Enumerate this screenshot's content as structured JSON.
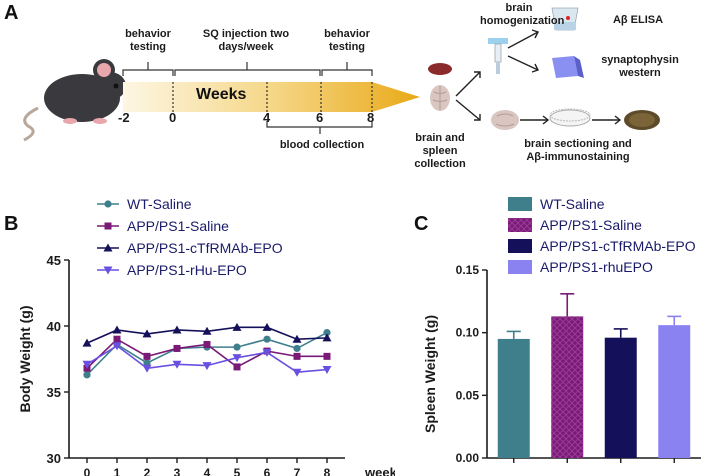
{
  "panel_labels": {
    "a": "A",
    "b": "B",
    "c": "C"
  },
  "panel_a": {
    "timeline_title": "Weeks",
    "ticks": [
      "-2",
      "0",
      "4",
      "6",
      "8"
    ],
    "phase1": "behavior testing",
    "phase2": "SQ injection  two days/week",
    "phase3": "behavior testing",
    "blood": "blood collection",
    "collection": "brain and spleen collection",
    "homogenization": "brain homogenization",
    "elisa": "Aβ ELISA",
    "western": "synaptophysin western",
    "sectioning": "brain sectioning and Aβ-immunostaining"
  },
  "chart_data": [
    {
      "type": "line",
      "panel": "B",
      "ylabel": "Body Weight (g)",
      "xlabel": "week",
      "x": [
        0,
        1,
        2,
        3,
        4,
        5,
        6,
        7,
        8
      ],
      "ylim": [
        30,
        45
      ],
      "yticks": [
        30,
        35,
        40,
        45
      ],
      "legend_position": "top-left",
      "series": [
        {
          "name": "WT-Saline",
          "color": "#3f7f8c",
          "marker": "circle",
          "values": [
            36.3,
            38.6,
            37.2,
            38.3,
            38.4,
            38.4,
            39.0,
            38.3,
            39.5
          ]
        },
        {
          "name": "APP/PS1-Saline",
          "color": "#7a1a77",
          "marker": "square",
          "values": [
            36.8,
            39.0,
            37.7,
            38.3,
            38.6,
            36.9,
            38.1,
            37.7,
            37.7
          ]
        },
        {
          "name": "APP/PS1-cTfRMAb-EPO",
          "color": "#15105a",
          "marker": "triangle-up",
          "values": [
            38.7,
            39.7,
            39.4,
            39.7,
            39.6,
            39.9,
            39.9,
            39.0,
            39.1
          ]
        },
        {
          "name": "APP/PS1-rHu-EPO",
          "color": "#6a50e0",
          "marker": "triangle-down",
          "values": [
            37.1,
            38.5,
            36.8,
            37.1,
            37.0,
            37.6,
            38.0,
            36.5,
            36.7
          ]
        }
      ]
    },
    {
      "type": "bar",
      "panel": "C",
      "ylabel": "Spleen Weight (g)",
      "ylim": [
        0,
        0.15
      ],
      "yticks": [
        "0.00",
        "0.05",
        "0.10",
        "0.15"
      ],
      "legend_position": "top",
      "categories": [
        "WT-Saline",
        "APP/PS1-Saline",
        "APP/PS1-cTfRMAb-EPO",
        "APP/PS1-rhuEPO"
      ],
      "values": [
        0.095,
        0.113,
        0.096,
        0.106
      ],
      "errors": [
        0.006,
        0.018,
        0.007,
        0.007
      ],
      "colors": [
        "#3f7f8c",
        "#7a1a77",
        "#15105a",
        "#8b82f2"
      ]
    }
  ]
}
